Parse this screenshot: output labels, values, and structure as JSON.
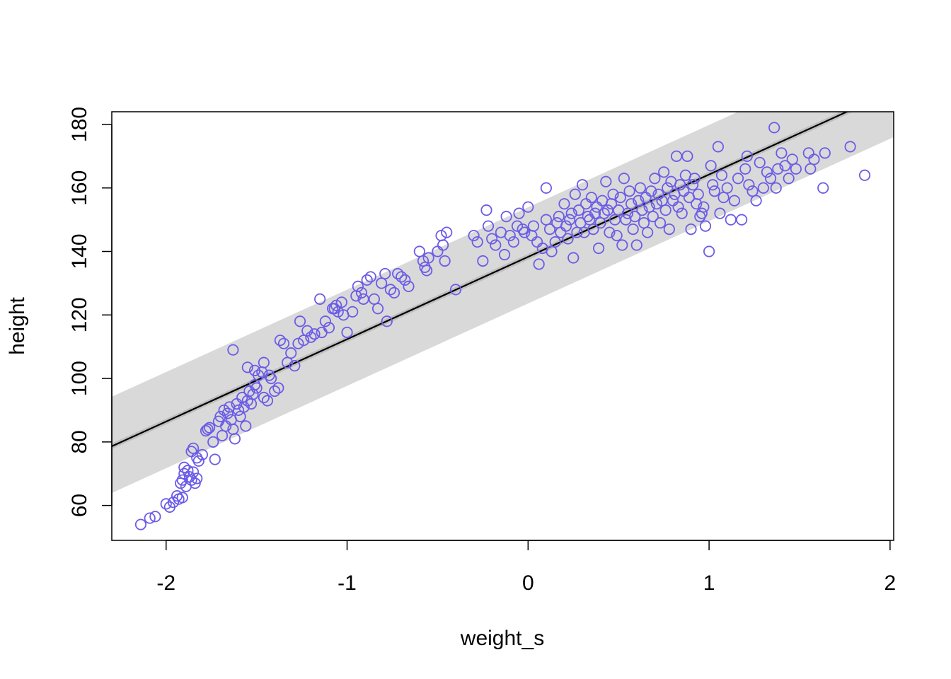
{
  "chart_data": {
    "type": "scatter",
    "title": "",
    "xlabel": "weight_s",
    "ylabel": "height",
    "xlim": [
      -2.3,
      2.02
    ],
    "ylim": [
      49,
      184
    ],
    "xticks": [
      -2,
      -1,
      0,
      1,
      2
    ],
    "xtick_labels": [
      "-2",
      "-1",
      "0",
      "1",
      "2"
    ],
    "yticks": [
      60,
      80,
      100,
      120,
      140,
      160,
      180
    ],
    "ytick_labels": [
      "60",
      "80",
      "100",
      "120",
      "140",
      "160",
      "180"
    ],
    "grid": false,
    "legend": "none",
    "colors": {
      "points": "#6b5ce7",
      "line": "#000000",
      "prediction_band": "#d9d9d9",
      "mean_band": "#bfbfbf"
    },
    "regression_line": {
      "intercept": 138.3,
      "slope": 25.94
    },
    "mean_interval": {
      "lower_offset": -0.9,
      "upper_offset": 0.9
    },
    "prediction_interval": {
      "lower_offset": -14.7,
      "upper_offset": 15.6
    },
    "points": [
      [
        -2.14,
        54
      ],
      [
        -2.09,
        56
      ],
      [
        -2.06,
        56.5
      ],
      [
        -2.0,
        60.5
      ],
      [
        -1.98,
        59.5
      ],
      [
        -1.96,
        61
      ],
      [
        -1.94,
        63
      ],
      [
        -1.93,
        62
      ],
      [
        -1.91,
        62.5
      ],
      [
        -1.92,
        67
      ],
      [
        -1.91,
        68
      ],
      [
        -1.9,
        70
      ],
      [
        -1.9,
        72
      ],
      [
        -1.89,
        66
      ],
      [
        -1.88,
        71
      ],
      [
        -1.87,
        69
      ],
      [
        -1.86,
        68
      ],
      [
        -1.85,
        70.5
      ],
      [
        -1.84,
        67
      ],
      [
        -1.83,
        68.5
      ],
      [
        -1.86,
        77
      ],
      [
        -1.85,
        78
      ],
      [
        -1.83,
        75
      ],
      [
        -1.82,
        74
      ],
      [
        -1.8,
        76
      ],
      [
        -1.78,
        83.5
      ],
      [
        -1.77,
        84
      ],
      [
        -1.76,
        84.5
      ],
      [
        -1.74,
        80
      ],
      [
        -1.73,
        74.5
      ],
      [
        -1.71,
        86.5
      ],
      [
        -1.7,
        88
      ],
      [
        -1.69,
        82
      ],
      [
        -1.68,
        90
      ],
      [
        -1.67,
        85
      ],
      [
        -1.66,
        89
      ],
      [
        -1.65,
        91
      ],
      [
        -1.64,
        87
      ],
      [
        -1.63,
        84
      ],
      [
        -1.62,
        81
      ],
      [
        -1.61,
        92
      ],
      [
        -1.6,
        90
      ],
      [
        -1.59,
        88
      ],
      [
        -1.58,
        94
      ],
      [
        -1.57,
        91
      ],
      [
        -1.56,
        85
      ],
      [
        -1.55,
        93
      ],
      [
        -1.54,
        96
      ],
      [
        -1.53,
        92
      ],
      [
        -1.52,
        95
      ],
      [
        -1.51,
        98
      ],
      [
        -1.5,
        97
      ],
      [
        -1.49,
        101
      ],
      [
        -1.47,
        102
      ],
      [
        -1.46,
        94
      ],
      [
        -1.44,
        93
      ],
      [
        -1.43,
        101
      ],
      [
        -1.42,
        100
      ],
      [
        -1.4,
        96
      ],
      [
        -1.38,
        97
      ],
      [
        -1.63,
        109
      ],
      [
        -1.55,
        103.5
      ],
      [
        -1.51,
        102.5
      ],
      [
        -1.46,
        105
      ],
      [
        -1.37,
        112
      ],
      [
        -1.35,
        111
      ],
      [
        -1.33,
        105
      ],
      [
        -1.31,
        108
      ],
      [
        -1.29,
        104
      ],
      [
        -1.27,
        111
      ],
      [
        -1.26,
        118
      ],
      [
        -1.24,
        112
      ],
      [
        -1.22,
        115
      ],
      [
        -1.2,
        113
      ],
      [
        -1.18,
        114
      ],
      [
        -1.15,
        125
      ],
      [
        -1.14,
        114.5
      ],
      [
        -1.12,
        118
      ],
      [
        -1.1,
        116
      ],
      [
        -1.08,
        122
      ],
      [
        -1.07,
        122
      ],
      [
        -1.06,
        123
      ],
      [
        -1.05,
        121
      ],
      [
        -1.03,
        124
      ],
      [
        -1.02,
        120
      ],
      [
        -1.0,
        114.5
      ],
      [
        -0.97,
        121
      ],
      [
        -0.95,
        126
      ],
      [
        -0.94,
        129
      ],
      [
        -0.92,
        127
      ],
      [
        -0.91,
        125
      ],
      [
        -0.89,
        131
      ],
      [
        -0.87,
        132
      ],
      [
        -0.85,
        125
      ],
      [
        -0.83,
        122
      ],
      [
        -0.81,
        130
      ],
      [
        -0.79,
        133
      ],
      [
        -0.78,
        118
      ],
      [
        -0.76,
        128
      ],
      [
        -0.74,
        127
      ],
      [
        -0.72,
        133
      ],
      [
        -0.7,
        132
      ],
      [
        -0.68,
        131
      ],
      [
        -0.66,
        129
      ],
      [
        -0.6,
        140
      ],
      [
        -0.58,
        137
      ],
      [
        -0.57,
        135
      ],
      [
        -0.56,
        134
      ],
      [
        -0.55,
        138
      ],
      [
        -0.5,
        140
      ],
      [
        -0.48,
        145
      ],
      [
        -0.47,
        142
      ],
      [
        -0.46,
        137
      ],
      [
        -0.45,
        146
      ],
      [
        -0.4,
        128
      ],
      [
        -0.3,
        145
      ],
      [
        -0.28,
        143
      ],
      [
        -0.25,
        137
      ],
      [
        -0.23,
        153
      ],
      [
        -0.22,
        148
      ],
      [
        -0.2,
        144
      ],
      [
        -0.18,
        142
      ],
      [
        -0.15,
        146
      ],
      [
        -0.13,
        139
      ],
      [
        -0.12,
        151
      ],
      [
        -0.1,
        145
      ],
      [
        -0.08,
        143
      ],
      [
        -0.06,
        148
      ],
      [
        -0.05,
        152
      ],
      [
        -0.03,
        147
      ],
      [
        -0.02,
        146
      ],
      [
        0.0,
        154
      ],
      [
        0.02,
        145
      ],
      [
        0.03,
        148
      ],
      [
        0.05,
        143
      ],
      [
        0.06,
        136
      ],
      [
        0.08,
        141
      ],
      [
        0.1,
        150
      ],
      [
        0.1,
        160
      ],
      [
        0.12,
        147
      ],
      [
        0.13,
        140
      ],
      [
        0.15,
        143
      ],
      [
        0.16,
        149
      ],
      [
        0.17,
        151
      ],
      [
        0.18,
        146
      ],
      [
        0.2,
        155
      ],
      [
        0.21,
        148
      ],
      [
        0.22,
        144
      ],
      [
        0.23,
        150
      ],
      [
        0.24,
        152
      ],
      [
        0.25,
        138
      ],
      [
        0.26,
        158
      ],
      [
        0.27,
        146
      ],
      [
        0.28,
        153
      ],
      [
        0.29,
        149
      ],
      [
        0.3,
        161
      ],
      [
        0.31,
        146
      ],
      [
        0.32,
        155
      ],
      [
        0.33,
        151
      ],
      [
        0.34,
        150
      ],
      [
        0.35,
        157
      ],
      [
        0.36,
        147
      ],
      [
        0.37,
        152
      ],
      [
        0.38,
        154
      ],
      [
        0.39,
        141
      ],
      [
        0.4,
        149
      ],
      [
        0.41,
        156
      ],
      [
        0.42,
        152
      ],
      [
        0.43,
        162
      ],
      [
        0.44,
        153
      ],
      [
        0.45,
        146
      ],
      [
        0.46,
        155
      ],
      [
        0.47,
        158
      ],
      [
        0.48,
        150
      ],
      [
        0.49,
        145
      ],
      [
        0.5,
        153
      ],
      [
        0.51,
        157
      ],
      [
        0.52,
        142
      ],
      [
        0.53,
        163
      ],
      [
        0.54,
        150
      ],
      [
        0.55,
        152
      ],
      [
        0.56,
        159
      ],
      [
        0.57,
        155
      ],
      [
        0.58,
        147
      ],
      [
        0.59,
        151
      ],
      [
        0.6,
        142
      ],
      [
        0.61,
        156
      ],
      [
        0.62,
        160
      ],
      [
        0.63,
        153
      ],
      [
        0.64,
        149
      ],
      [
        0.65,
        157
      ],
      [
        0.66,
        146
      ],
      [
        0.67,
        154
      ],
      [
        0.68,
        159
      ],
      [
        0.69,
        151
      ],
      [
        0.7,
        163
      ],
      [
        0.71,
        155
      ],
      [
        0.72,
        158
      ],
      [
        0.73,
        149
      ],
      [
        0.74,
        156
      ],
      [
        0.75,
        165
      ],
      [
        0.76,
        153
      ],
      [
        0.77,
        160
      ],
      [
        0.78,
        147
      ],
      [
        0.79,
        162
      ],
      [
        0.8,
        156
      ],
      [
        0.81,
        158
      ],
      [
        0.82,
        170
      ],
      [
        0.83,
        154
      ],
      [
        0.84,
        161
      ],
      [
        0.85,
        152
      ],
      [
        0.86,
        159
      ],
      [
        0.87,
        164
      ],
      [
        0.88,
        170
      ],
      [
        0.89,
        157
      ],
      [
        0.9,
        147
      ],
      [
        0.91,
        161
      ],
      [
        0.92,
        163
      ],
      [
        0.93,
        155
      ],
      [
        0.94,
        158
      ],
      [
        0.95,
        151
      ],
      [
        0.96,
        152
      ],
      [
        0.97,
        154
      ],
      [
        0.98,
        148
      ],
      [
        1.0,
        140
      ],
      [
        1.01,
        167
      ],
      [
        1.02,
        161
      ],
      [
        1.03,
        159
      ],
      [
        1.05,
        173
      ],
      [
        1.06,
        152
      ],
      [
        1.07,
        164
      ],
      [
        1.08,
        157
      ],
      [
        1.1,
        160
      ],
      [
        1.12,
        150
      ],
      [
        1.14,
        156
      ],
      [
        1.16,
        163
      ],
      [
        1.18,
        150
      ],
      [
        1.2,
        166
      ],
      [
        1.21,
        170
      ],
      [
        1.22,
        161
      ],
      [
        1.24,
        159
      ],
      [
        1.26,
        156
      ],
      [
        1.28,
        168
      ],
      [
        1.3,
        160
      ],
      [
        1.32,
        165
      ],
      [
        1.34,
        163
      ],
      [
        1.36,
        179
      ],
      [
        1.37,
        160
      ],
      [
        1.38,
        166
      ],
      [
        1.4,
        171
      ],
      [
        1.42,
        167
      ],
      [
        1.44,
        163
      ],
      [
        1.46,
        169
      ],
      [
        1.48,
        166
      ],
      [
        1.55,
        171
      ],
      [
        1.56,
        166
      ],
      [
        1.58,
        169
      ],
      [
        1.63,
        160
      ],
      [
        1.64,
        171
      ],
      [
        1.78,
        173
      ],
      [
        1.86,
        164
      ]
    ]
  }
}
